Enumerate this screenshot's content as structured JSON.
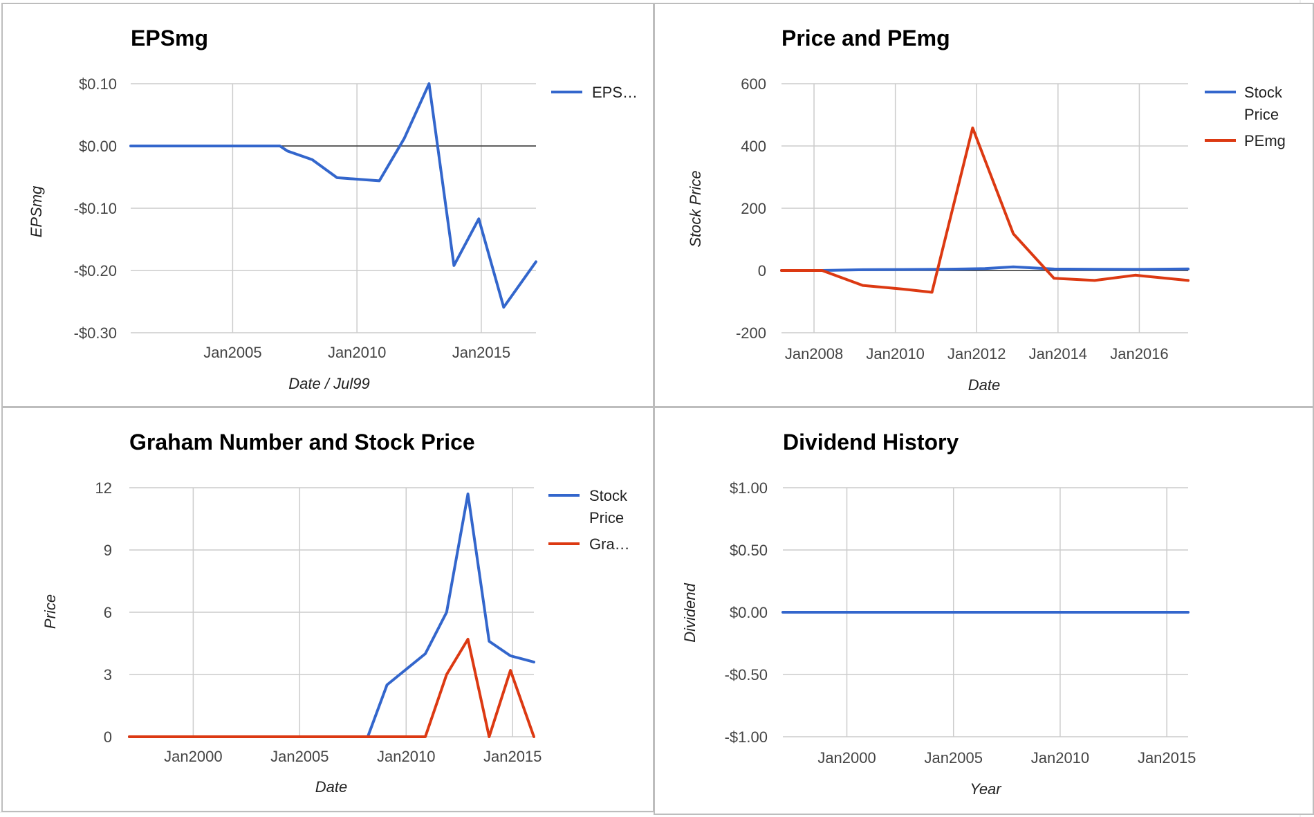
{
  "charts": {
    "eps": {
      "title": "EPSmg",
      "xlabel": "Date / Jul99",
      "ylabel": "EPSmg",
      "legend": [
        "EPS…"
      ]
    },
    "price_pe": {
      "title": "Price and PEmg",
      "xlabel": "Date",
      "ylabel": "Stock Price",
      "legend": [
        "Stock",
        "Price",
        "PEmg"
      ]
    },
    "graham": {
      "title": "Graham Number and Stock Price",
      "xlabel": "Date",
      "ylabel": "Price",
      "legend": [
        "Stock",
        "Price",
        "Gra…"
      ]
    },
    "dividend": {
      "title": "Dividend History",
      "xlabel": "Year",
      "ylabel": "Dividend",
      "legend": []
    }
  },
  "chart_data": [
    {
      "id": "eps",
      "type": "line",
      "title": "EPSmg",
      "xlabel": "Date / Jul99",
      "ylabel": "EPSmg",
      "xlim": [
        2000.9,
        2017.2
      ],
      "ylim": [
        -0.3,
        0.1
      ],
      "x_ticks": [
        2005,
        2010,
        2015
      ],
      "x_tick_labels": [
        "Jan2005",
        "Jan2010",
        "Jan2015"
      ],
      "y_ticks": [
        0.1,
        0.0,
        -0.1,
        -0.2,
        -0.3
      ],
      "y_tick_labels": [
        "$0.10",
        "$0.00",
        "-$0.10",
        "-$0.20",
        "-$0.30"
      ],
      "grid": true,
      "legend_position": "right",
      "series": [
        {
          "name": "EPS…",
          "color": "#3366cc",
          "x": [
            2000.9,
            2006.9,
            2007.2,
            2008.2,
            2009.2,
            2010.9,
            2011.9,
            2012.9,
            2013.9,
            2014.9,
            2015.9,
            2017.2
          ],
          "y": [
            0.0,
            0.0,
            -0.008,
            -0.022,
            -0.051,
            -0.056,
            0.012,
            0.1,
            -0.192,
            -0.117,
            -0.259,
            -0.186
          ]
        }
      ]
    },
    {
      "id": "price_pe",
      "type": "line",
      "title": "Price and PEmg",
      "xlabel": "Date",
      "ylabel": "Stock Price",
      "xlim": [
        2007.2,
        2017.2
      ],
      "ylim": [
        -200,
        600
      ],
      "x_ticks": [
        2008,
        2010,
        2012,
        2014,
        2016
      ],
      "x_tick_labels": [
        "Jan2008",
        "Jan2010",
        "Jan2012",
        "Jan2014",
        "Jan2016"
      ],
      "y_ticks": [
        600,
        400,
        200,
        0,
        -200
      ],
      "y_tick_labels": [
        "600",
        "400",
        "200",
        "0",
        "-200"
      ],
      "grid": true,
      "legend_position": "right",
      "series": [
        {
          "name": "Stock Price",
          "color": "#3366cc",
          "x": [
            2007.2,
            2008.2,
            2009.2,
            2010.2,
            2011.2,
            2012.2,
            2012.9,
            2013.9,
            2014.9,
            2015.9,
            2017.2
          ],
          "y": [
            0,
            0,
            2.5,
            3,
            4,
            6,
            11.7,
            4.6,
            3.9,
            3.6,
            5
          ]
        },
        {
          "name": "PEmg",
          "color": "#dc3912",
          "x": [
            2007.2,
            2008.2,
            2009.2,
            2010.2,
            2010.9,
            2011.9,
            2012.9,
            2013.9,
            2014.9,
            2015.9,
            2017.2
          ],
          "y": [
            0,
            0,
            -48,
            -60,
            -70,
            458,
            118,
            -25,
            -32,
            -15,
            -32
          ]
        }
      ]
    },
    {
      "id": "graham",
      "type": "line",
      "title": "Graham Number and Stock Price",
      "xlabel": "Date",
      "ylabel": "Price",
      "xlim": [
        1997,
        2016
      ],
      "ylim": [
        0,
        12
      ],
      "x_ticks": [
        2000,
        2005,
        2010,
        2015
      ],
      "x_tick_labels": [
        "Jan2000",
        "Jan2005",
        "Jan2010",
        "Jan2015"
      ],
      "y_ticks": [
        12,
        9,
        6,
        3,
        0
      ],
      "y_tick_labels": [
        "12",
        "9",
        "6",
        "3",
        "0"
      ],
      "grid": true,
      "legend_position": "right",
      "series": [
        {
          "name": "Stock Price",
          "color": "#3366cc",
          "x": [
            1997,
            2008.2,
            2009.1,
            2010.9,
            2011.9,
            2012.9,
            2013.9,
            2014.9,
            2016
          ],
          "y": [
            0,
            0,
            2.5,
            4,
            6,
            11.7,
            4.6,
            3.9,
            3.6
          ]
        },
        {
          "name": "Gra…",
          "color": "#dc3912",
          "x": [
            1997,
            2010.9,
            2011.9,
            2012.9,
            2013.9,
            2014.9,
            2016
          ],
          "y": [
            0,
            0,
            3.0,
            4.7,
            0,
            3.2,
            0
          ]
        }
      ]
    },
    {
      "id": "dividend",
      "type": "line",
      "title": "Dividend History",
      "xlabel": "Year",
      "ylabel": "Dividend",
      "xlim": [
        1997,
        2016
      ],
      "ylim": [
        -1,
        1
      ],
      "x_ticks": [
        2000,
        2005,
        2010,
        2015
      ],
      "x_tick_labels": [
        "Jan2000",
        "Jan2005",
        "Jan2010",
        "Jan2015"
      ],
      "y_ticks": [
        1,
        0.5,
        0,
        -0.5,
        -1
      ],
      "y_tick_labels": [
        "$1.00",
        "$0.50",
        "$0.00",
        "-$0.50",
        "-$1.00"
      ],
      "grid": true,
      "legend_position": "none",
      "series": [
        {
          "name": "",
          "color": "#3366cc",
          "x": [
            1997,
            2016
          ],
          "y": [
            0,
            0
          ]
        }
      ]
    }
  ]
}
